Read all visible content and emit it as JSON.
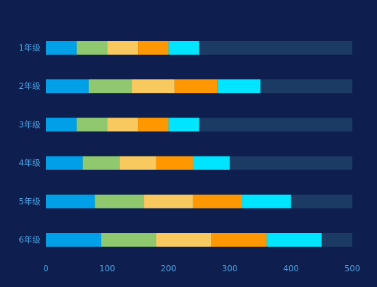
{
  "chart_data": {
    "type": "bar",
    "orientation": "horizontal",
    "stacked": true,
    "categories": [
      "1年级",
      "2年级",
      "3年级",
      "4年级",
      "5年级",
      "6年级"
    ],
    "series": [
      {
        "values": [
          50,
          70,
          50,
          60,
          80,
          90
        ]
      },
      {
        "values": [
          50,
          70,
          50,
          60,
          80,
          90
        ]
      },
      {
        "values": [
          50,
          70,
          50,
          60,
          80,
          90
        ]
      },
      {
        "values": [
          50,
          70,
          50,
          60,
          80,
          90
        ]
      },
      {
        "values": [
          50,
          70,
          50,
          60,
          80,
          90
        ]
      }
    ],
    "series_colors": [
      "#00a0e9",
      "#8fc86e",
      "#f7c95e",
      "#ff9800",
      "#00e5ff"
    ],
    "background_bar": {
      "value": 500,
      "color": "#1b3a64"
    },
    "x_ticks": [
      0,
      100,
      200,
      300,
      400,
      500
    ],
    "xlim": [
      0,
      500
    ],
    "grid": false,
    "legend": "none",
    "title": "",
    "xlabel": "",
    "ylabel": "",
    "colors": {
      "background": "#0e1f4f",
      "tick_label": "#4a9fe0"
    }
  }
}
